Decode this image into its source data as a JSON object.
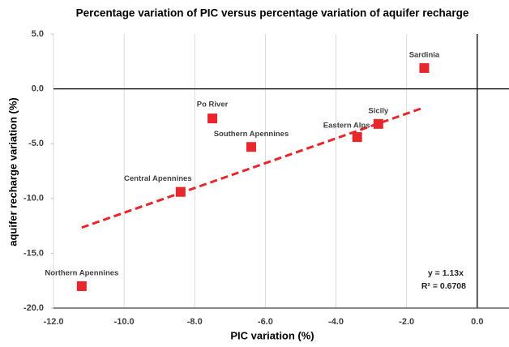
{
  "chart_data": {
    "type": "scatter",
    "title": "Percentage variation of PIC versus percentage variation of aquifer recharge",
    "x_label": "PIC variation (%)",
    "y_label": "aquifer recharge variation (%)",
    "point_labels": [
      "Sardinia",
      "Sicily",
      "Eastern Alps",
      "Southern Apennines",
      "Po River",
      "Central Apennines",
      "Northern Apennines"
    ],
    "x": [
      -1.5,
      -2.8,
      -3.4,
      -6.4,
      -7.5,
      -8.4,
      -11.2
    ],
    "values": [
      1.9,
      -3.2,
      -4.4,
      -5.3,
      -2.7,
      -9.4,
      -18.0
    ],
    "color": "#e8262b",
    "xlim": [
      -12,
      0.9
    ],
    "ylim": [
      -20,
      5
    ],
    "xticks": [
      {
        "value": -12,
        "label": "-12.0"
      },
      {
        "value": -10,
        "label": "-10.0"
      },
      {
        "value": -8,
        "label": "-8.0"
      },
      {
        "value": -6,
        "label": "-6.0"
      },
      {
        "value": -4,
        "label": "-4.0"
      },
      {
        "value": -2,
        "label": "-2.0"
      },
      {
        "value": 0,
        "label": "0.0"
      }
    ],
    "yticks": [
      {
        "value": 5,
        "label": "5.0"
      },
      {
        "value": 0,
        "label": "0.0"
      },
      {
        "value": -5,
        "label": "-5.0"
      },
      {
        "value": -10,
        "label": "-10.0"
      },
      {
        "value": -15,
        "label": "-15.0"
      },
      {
        "value": -20,
        "label": "-20.0"
      }
    ],
    "grid": true,
    "trendline": {
      "slope": 1.13,
      "x_range": [
        -11.2,
        -1.6
      ],
      "color": "#e8262b",
      "equation": "y = 1.13x",
      "r_squared": "R² = 0.6708"
    }
  }
}
